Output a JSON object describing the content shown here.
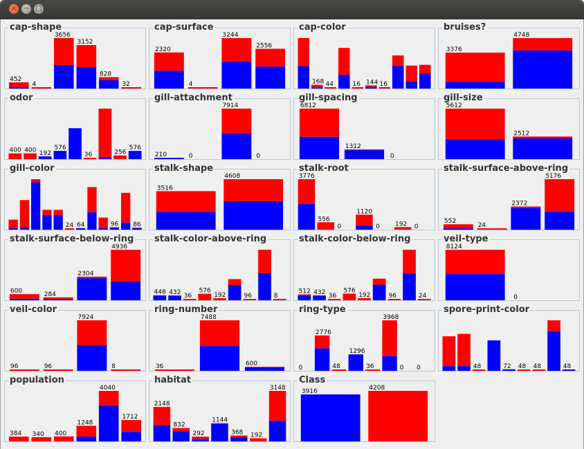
{
  "window": {
    "close_icon": "×",
    "min_icon": "−",
    "max_icon": "□"
  },
  "colors": {
    "red": "#ff0000",
    "blue": "#0000ff"
  },
  "chart_data": [
    {
      "type": "bar",
      "title": "cap-shape",
      "bars": [
        {
          "label": "452",
          "total": 452,
          "blue": 40
        },
        {
          "label": "4",
          "total": 4,
          "blue": 0
        },
        {
          "label": "3656",
          "total": 3656,
          "blue": 1708
        },
        {
          "label": "3152",
          "total": 3152,
          "blue": 1556
        },
        {
          "label": "828",
          "total": 828,
          "blue": 600
        },
        {
          "label": "32",
          "total": 32,
          "blue": 0
        }
      ]
    },
    {
      "type": "bar",
      "title": "cap-surface",
      "bars": [
        {
          "label": "2320",
          "total": 2320,
          "blue": 1144
        },
        {
          "label": "4",
          "total": 4,
          "blue": 0
        },
        {
          "label": "3244",
          "total": 3244,
          "blue": 1740
        },
        {
          "label": "2556",
          "total": 2556,
          "blue": 1412
        }
      ]
    },
    {
      "type": "bar",
      "title": "cap-color",
      "bars": [
        {
          "label": "",
          "total": 2284,
          "blue": 1020
        },
        {
          "label": "168",
          "total": 168,
          "blue": 48
        },
        {
          "label": "44",
          "total": 44,
          "blue": 0
        },
        {
          "label": "",
          "total": 1840,
          "blue": 624
        },
        {
          "label": "16",
          "total": 16,
          "blue": 0
        },
        {
          "label": "144",
          "total": 144,
          "blue": 64
        },
        {
          "label": "16",
          "total": 16,
          "blue": 0
        },
        {
          "label": "",
          "total": 1500,
          "blue": 1020
        },
        {
          "label": "",
          "total": 1040,
          "blue": 320
        },
        {
          "label": "",
          "total": 1072,
          "blue": 672
        }
      ]
    },
    {
      "type": "bar",
      "title": "bruises?",
      "bars": [
        {
          "label": "3376",
          "total": 3376,
          "blue": 624
        },
        {
          "label": "4748",
          "total": 4748,
          "blue": 3584
        }
      ]
    },
    {
      "type": "bar",
      "title": "odor",
      "bars": [
        {
          "label": "400",
          "total": 400,
          "blue": 0
        },
        {
          "label": "400",
          "total": 400,
          "blue": 0
        },
        {
          "label": "192",
          "total": 192,
          "blue": 192
        },
        {
          "label": "576",
          "total": 576,
          "blue": 576
        },
        {
          "label": "",
          "total": 2160,
          "blue": 2160
        },
        {
          "label": "36",
          "total": 36,
          "blue": 0
        },
        {
          "label": "",
          "total": 3528,
          "blue": 120
        },
        {
          "label": "256",
          "total": 256,
          "blue": 0
        },
        {
          "label": "576",
          "total": 576,
          "blue": 576
        }
      ]
    },
    {
      "type": "bar",
      "title": "gill-attachment",
      "bars": [
        {
          "label": "210",
          "total": 210,
          "blue": 192
        },
        {
          "label": "0",
          "total": 0,
          "blue": 0
        },
        {
          "label": "7914",
          "total": 7914,
          "blue": 4016
        },
        {
          "label": "0",
          "total": 0,
          "blue": 0
        }
      ]
    },
    {
      "type": "bar",
      "title": "gill-spacing",
      "bars": [
        {
          "label": "6812",
          "total": 6812,
          "blue": 3008
        },
        {
          "label": "1312",
          "total": 1312,
          "blue": 1200
        },
        {
          "label": "0",
          "total": 0,
          "blue": 0
        }
      ]
    },
    {
      "type": "bar",
      "title": "gill-size",
      "bars": [
        {
          "label": "5612",
          "total": 5612,
          "blue": 2224
        },
        {
          "label": "2512",
          "total": 2512,
          "blue": 2304
        }
      ]
    },
    {
      "type": "bar",
      "title": "gill-color",
      "bars": [
        {
          "label": "",
          "total": 408,
          "blue": 64
        },
        {
          "label": "",
          "total": 1202,
          "blue": 96
        },
        {
          "label": "",
          "total": 2048,
          "blue": 1920
        },
        {
          "label": "",
          "total": 806,
          "blue": 590
        },
        {
          "label": "",
          "total": 806,
          "blue": 590
        },
        {
          "label": "24",
          "total": 24,
          "blue": 0
        },
        {
          "label": "64",
          "total": 64,
          "blue": 64
        },
        {
          "label": "",
          "total": 1728,
          "blue": 704
        },
        {
          "label": "",
          "total": 492,
          "blue": 64
        },
        {
          "label": "96",
          "total": 96,
          "blue": 96
        },
        {
          "label": "",
          "total": 1492,
          "blue": 284
        },
        {
          "label": "86",
          "total": 86,
          "blue": 64
        }
      ]
    },
    {
      "type": "bar",
      "title": "stalk-shape",
      "bars": [
        {
          "label": "3516",
          "total": 3516,
          "blue": 1616
        },
        {
          "label": "4608",
          "total": 4608,
          "blue": 2592
        }
      ]
    },
    {
      "type": "bar",
      "title": "stalk-root",
      "bars": [
        {
          "label": "3776",
          "total": 3776,
          "blue": 1920
        },
        {
          "label": "556",
          "total": 556,
          "blue": 0
        },
        {
          "label": "0",
          "total": 0,
          "blue": 0
        },
        {
          "label": "1120",
          "total": 1120,
          "blue": 320
        },
        {
          "label": "0",
          "total": 0,
          "blue": 0
        },
        {
          "label": "192",
          "total": 192,
          "blue": 0
        },
        {
          "label": "0",
          "total": 0,
          "blue": 0
        }
      ]
    },
    {
      "type": "bar",
      "title": "stalk-surface-above-ring",
      "bars": [
        {
          "label": "552",
          "total": 552,
          "blue": 144
        },
        {
          "label": "24",
          "total": 24,
          "blue": 0
        },
        {
          "label": "2372",
          "total": 2372,
          "blue": 2228
        },
        {
          "label": "5176",
          "total": 5176,
          "blue": 1836
        }
      ]
    },
    {
      "type": "bar",
      "title": "stalk-surface-below-ring",
      "bars": [
        {
          "label": "600",
          "total": 600,
          "blue": 144
        },
        {
          "label": "284",
          "total": 284,
          "blue": 64
        },
        {
          "label": "2304",
          "total": 2304,
          "blue": 2160
        },
        {
          "label": "4936",
          "total": 4936,
          "blue": 1840
        }
      ]
    },
    {
      "type": "bar",
      "title": "stalk-color-above-ring",
      "bars": [
        {
          "label": "448",
          "total": 448,
          "blue": 400
        },
        {
          "label": "432",
          "total": 432,
          "blue": 400
        },
        {
          "label": "36",
          "total": 36,
          "blue": 0
        },
        {
          "label": "576",
          "total": 576,
          "blue": 0
        },
        {
          "label": "192",
          "total": 192,
          "blue": 0
        },
        {
          "label": "",
          "total": 1872,
          "blue": 1344
        },
        {
          "label": "96",
          "total": 96,
          "blue": 0
        },
        {
          "label": "",
          "total": 4464,
          "blue": 2400
        },
        {
          "label": "8",
          "total": 8,
          "blue": 0
        }
      ]
    },
    {
      "type": "bar",
      "title": "stalk-color-below-ring",
      "bars": [
        {
          "label": "512",
          "total": 512,
          "blue": 400
        },
        {
          "label": "432",
          "total": 432,
          "blue": 400
        },
        {
          "label": "36",
          "total": 36,
          "blue": 0
        },
        {
          "label": "576",
          "total": 576,
          "blue": 0
        },
        {
          "label": "192",
          "total": 192,
          "blue": 0
        },
        {
          "label": "",
          "total": 1872,
          "blue": 1344
        },
        {
          "label": "96",
          "total": 96,
          "blue": 0
        },
        {
          "label": "",
          "total": 4384,
          "blue": 2336
        },
        {
          "label": "24",
          "total": 24,
          "blue": 0
        }
      ]
    },
    {
      "type": "bar",
      "title": "veil-type",
      "bars": [
        {
          "label": "8124",
          "total": 8124,
          "blue": 4208
        },
        {
          "label": "0",
          "total": 0,
          "blue": 0
        }
      ]
    },
    {
      "type": "bar",
      "title": "veil-color",
      "bars": [
        {
          "label": "96",
          "total": 96,
          "blue": 0
        },
        {
          "label": "96",
          "total": 96,
          "blue": 0
        },
        {
          "label": "7924",
          "total": 7924,
          "blue": 4016
        },
        {
          "label": "8",
          "total": 8,
          "blue": 0
        }
      ]
    },
    {
      "type": "bar",
      "title": "ring-number",
      "bars": [
        {
          "label": "36",
          "total": 36,
          "blue": 0
        },
        {
          "label": "7488",
          "total": 7488,
          "blue": 3680
        },
        {
          "label": "600",
          "total": 600,
          "blue": 528
        }
      ]
    },
    {
      "type": "bar",
      "title": "ring-type",
      "bars": [
        {
          "label": "0",
          "total": 0,
          "blue": 0
        },
        {
          "label": "2776",
          "total": 2776,
          "blue": 1768
        },
        {
          "label": "48",
          "total": 48,
          "blue": 0
        },
        {
          "label": "1296",
          "total": 1296,
          "blue": 1296
        },
        {
          "label": "36",
          "total": 36,
          "blue": 0
        },
        {
          "label": "3968",
          "total": 3968,
          "blue": 1152
        },
        {
          "label": "0",
          "total": 0,
          "blue": 0
        },
        {
          "label": "0",
          "total": 0,
          "blue": 0
        }
      ]
    },
    {
      "type": "bar",
      "title": "spore-print-color",
      "bars": [
        {
          "label": "",
          "total": 1632,
          "blue": 224
        },
        {
          "label": "",
          "total": 1744,
          "blue": 224
        },
        {
          "label": "48",
          "total": 48,
          "blue": 0
        },
        {
          "label": "",
          "total": 1440,
          "blue": 1440
        },
        {
          "label": "72",
          "total": 72,
          "blue": 72
        },
        {
          "label": "48",
          "total": 48,
          "blue": 0
        },
        {
          "label": "48",
          "total": 48,
          "blue": 0
        },
        {
          "label": "",
          "total": 2388,
          "blue": 1872
        },
        {
          "label": "48",
          "total": 48,
          "blue": 48
        }
      ]
    },
    {
      "type": "bar",
      "title": "population",
      "bars": [
        {
          "label": "384",
          "total": 384,
          "blue": 0
        },
        {
          "label": "340",
          "total": 340,
          "blue": 0
        },
        {
          "label": "400",
          "total": 400,
          "blue": 0
        },
        {
          "label": "1248",
          "total": 1248,
          "blue": 384
        },
        {
          "label": "4040",
          "total": 4040,
          "blue": 2848
        },
        {
          "label": "1712",
          "total": 1712,
          "blue": 752
        }
      ]
    },
    {
      "type": "bar",
      "title": "habitat",
      "bars": [
        {
          "label": "2148",
          "total": 2148,
          "blue": 1008
        },
        {
          "label": "832",
          "total": 832,
          "blue": 640
        },
        {
          "label": "292",
          "total": 292,
          "blue": 136
        },
        {
          "label": "1144",
          "total": 1144,
          "blue": 1088
        },
        {
          "label": "368",
          "total": 368,
          "blue": 256
        },
        {
          "label": "192",
          "total": 192,
          "blue": 0
        },
        {
          "label": "3148",
          "total": 3148,
          "blue": 1280
        }
      ]
    },
    {
      "type": "bar",
      "title": "Class",
      "bars": [
        {
          "label": "3916",
          "total": 3916,
          "blue": 3916
        },
        {
          "label": "4208",
          "total": 4208,
          "blue": 0
        }
      ]
    }
  ]
}
